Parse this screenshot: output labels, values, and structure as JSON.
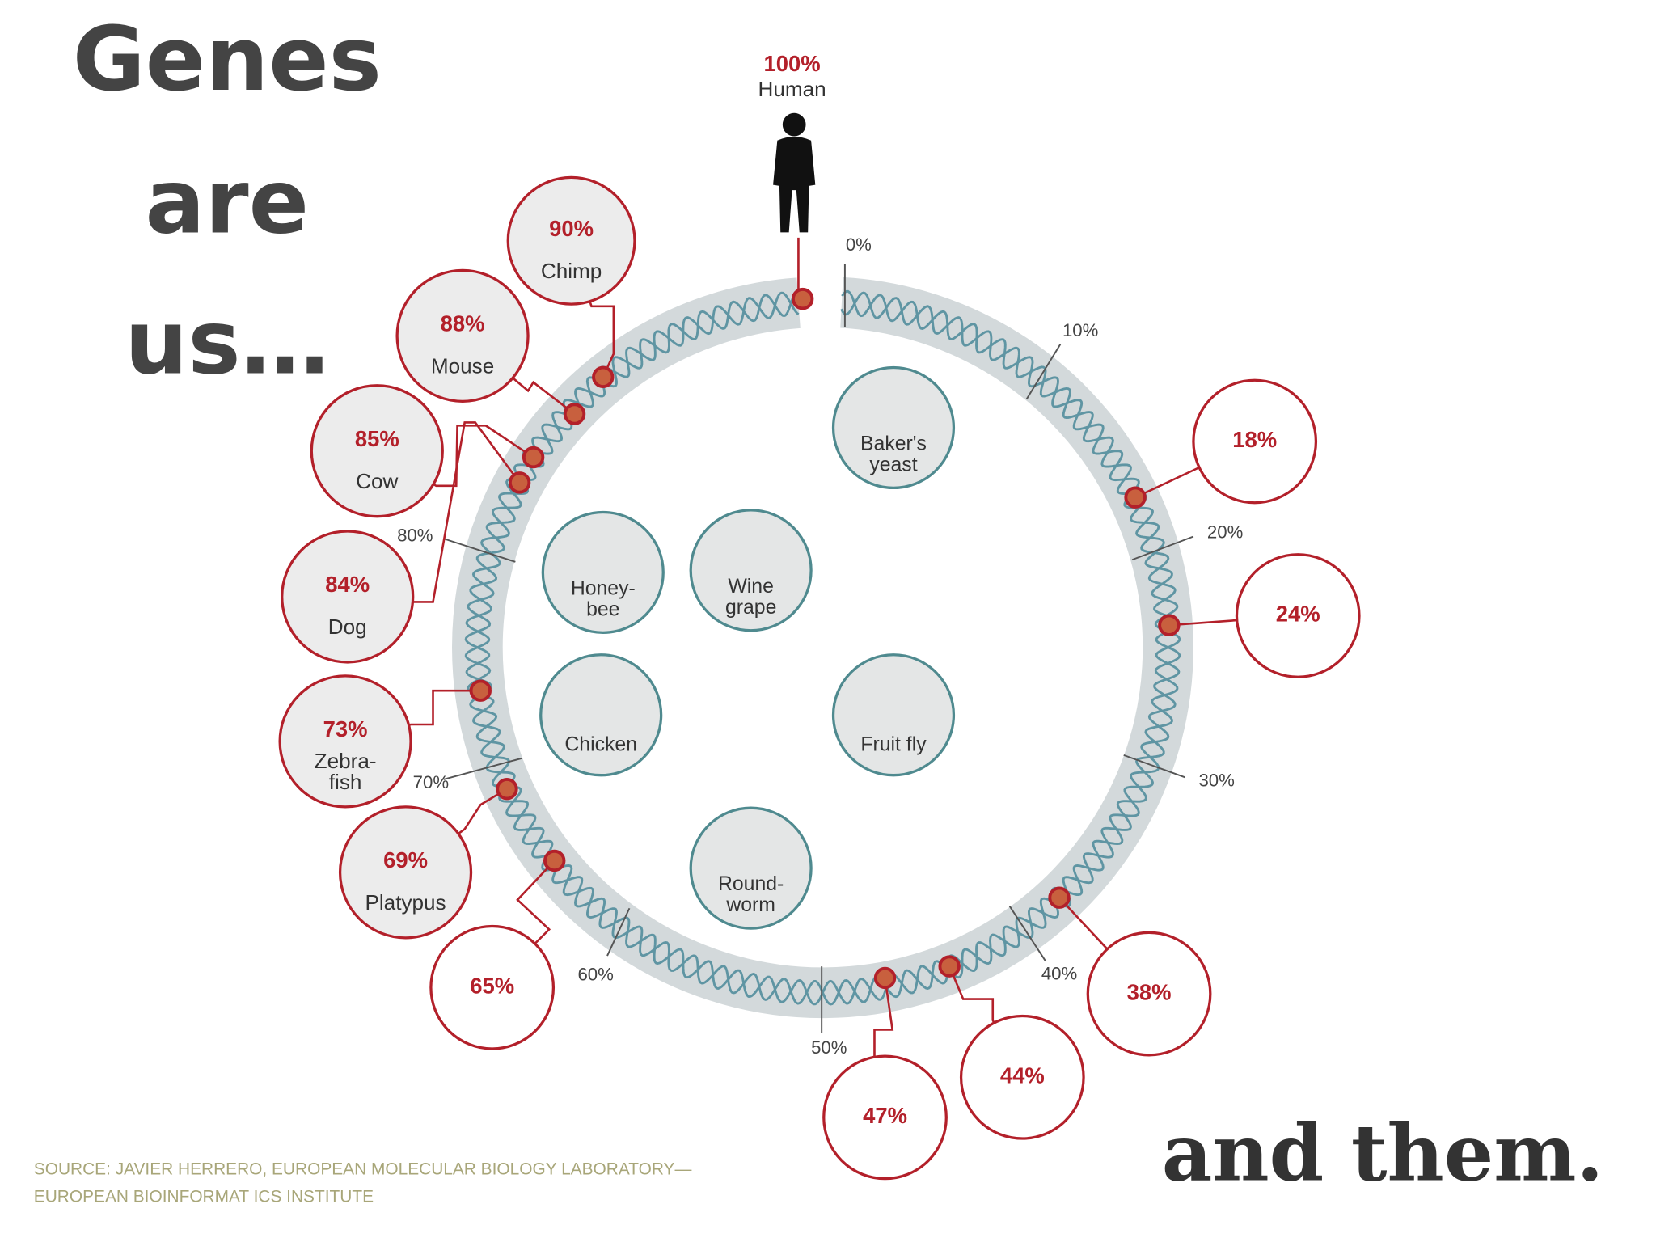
{
  "title_lines": [
    "Genes",
    "are",
    "us…"
  ],
  "human": {
    "percent": "100%",
    "name": "Human"
  },
  "scale": [
    "0%",
    "10%",
    "20%",
    "30%",
    "40%",
    "50%",
    "60%",
    "70%",
    "80%"
  ],
  "organisms": [
    {
      "percent": "90%",
      "name_lines": [
        "Chimp"
      ]
    },
    {
      "percent": "88%",
      "name_lines": [
        "Mouse"
      ]
    },
    {
      "percent": "85%",
      "name_lines": [
        "Cow"
      ]
    },
    {
      "percent": "84%",
      "name_lines": [
        "Dog"
      ]
    },
    {
      "percent": "73%",
      "name_lines": [
        "Zebra-",
        "fish"
      ]
    },
    {
      "percent": "69%",
      "name_lines": [
        "Platypus"
      ]
    },
    {
      "percent": "65%"
    },
    {
      "percent": "47%"
    },
    {
      "percent": "44%"
    },
    {
      "percent": "38%"
    },
    {
      "percent": "24%"
    },
    {
      "percent": "18%"
    }
  ],
  "inner_organisms": [
    {
      "lines": [
        "Baker's",
        "yeast"
      ]
    },
    {
      "lines": [
        "Honey-",
        "bee"
      ]
    },
    {
      "lines": [
        "Wine",
        "grape"
      ]
    },
    {
      "lines": [
        "Chicken"
      ]
    },
    {
      "lines": [
        "Fruit fly"
      ]
    },
    {
      "lines": [
        "Round-",
        "worm"
      ]
    }
  ],
  "source_lines": [
    "SOURCE: JAVIER HERRERO, EUROPEAN MOLECULAR BIOLOGY LABORATORY—",
    "EUROPEAN BIOINFORMAT ICS INSTITUTE"
  ],
  "closing": "and them."
}
